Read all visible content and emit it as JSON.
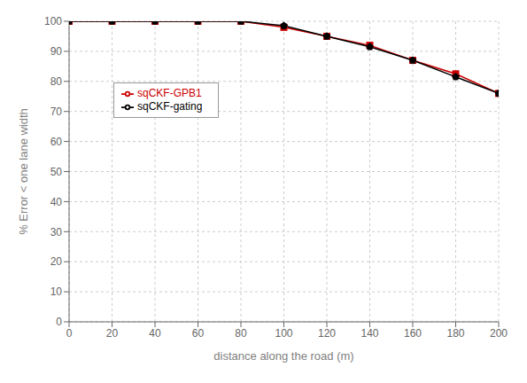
{
  "chart_data": {
    "type": "line",
    "x": [
      0,
      20,
      40,
      60,
      80,
      100,
      120,
      140,
      160,
      180,
      200
    ],
    "series": [
      {
        "name": "sqCKF-GPB1",
        "color": "#cc0000",
        "marker": "square",
        "line_style": "solid",
        "values": [
          100,
          100,
          100,
          100,
          100,
          98.0,
          95.0,
          92.0,
          87.0,
          82.5,
          76.0
        ]
      },
      {
        "name": "sqCKF-gating",
        "color": "#000000",
        "marker": "pentagon",
        "line_style": "solid",
        "values": [
          100,
          100,
          100,
          100,
          100,
          98.5,
          95.0,
          91.5,
          87.0,
          81.5,
          76.0
        ]
      }
    ],
    "xlabel": "distance along the road (m)",
    "ylabel": "% Error < one lane width",
    "xlim": [
      0,
      200
    ],
    "ylim": [
      0,
      100
    ],
    "xticks": [
      0,
      20,
      40,
      60,
      80,
      100,
      120,
      140,
      160,
      180,
      200
    ],
    "yticks": [
      0,
      10,
      20,
      30,
      40,
      50,
      60,
      70,
      80,
      90,
      100
    ],
    "grid": true,
    "legend": "upper left"
  }
}
